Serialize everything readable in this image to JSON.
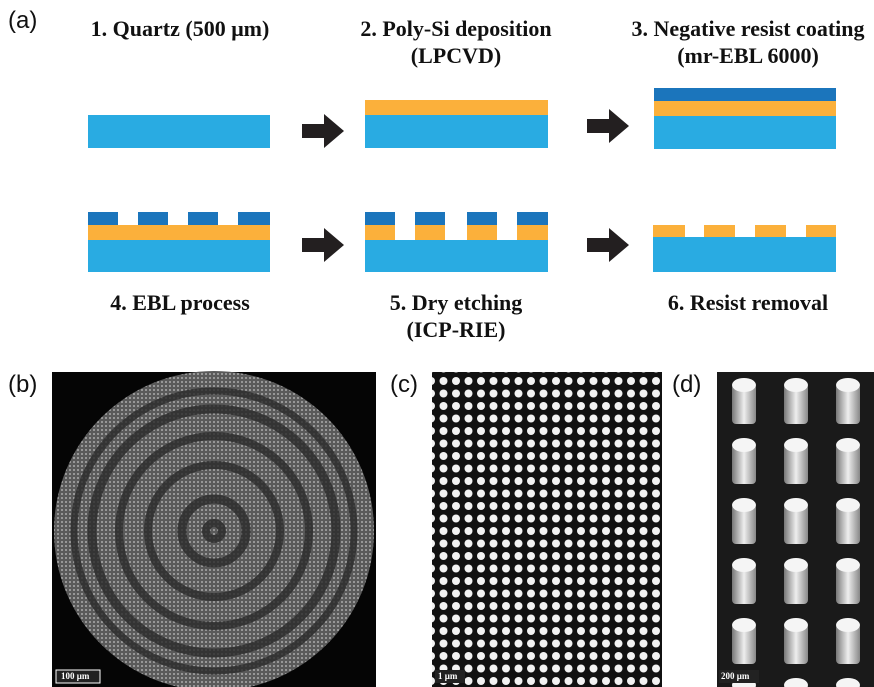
{
  "panels": {
    "a": "(a)",
    "b": "(b)",
    "c": "(c)",
    "d": "(d)"
  },
  "steps": [
    {
      "label": "1. Quartz (500 μm)"
    },
    {
      "label": "2. Poly-Si deposition",
      "sublabel": "(LPCVD)"
    },
    {
      "label": "3. Negative resist coating",
      "sublabel": "(mr-EBL 6000)"
    },
    {
      "label": "4. EBL process"
    },
    {
      "label": "5. Dry etching",
      "sublabel": "(ICP-RIE)"
    },
    {
      "label": "6. Resist removal"
    }
  ],
  "scale_bars": {
    "b": "100 μm",
    "c": "1 μm",
    "d": "200 μm"
  }
}
